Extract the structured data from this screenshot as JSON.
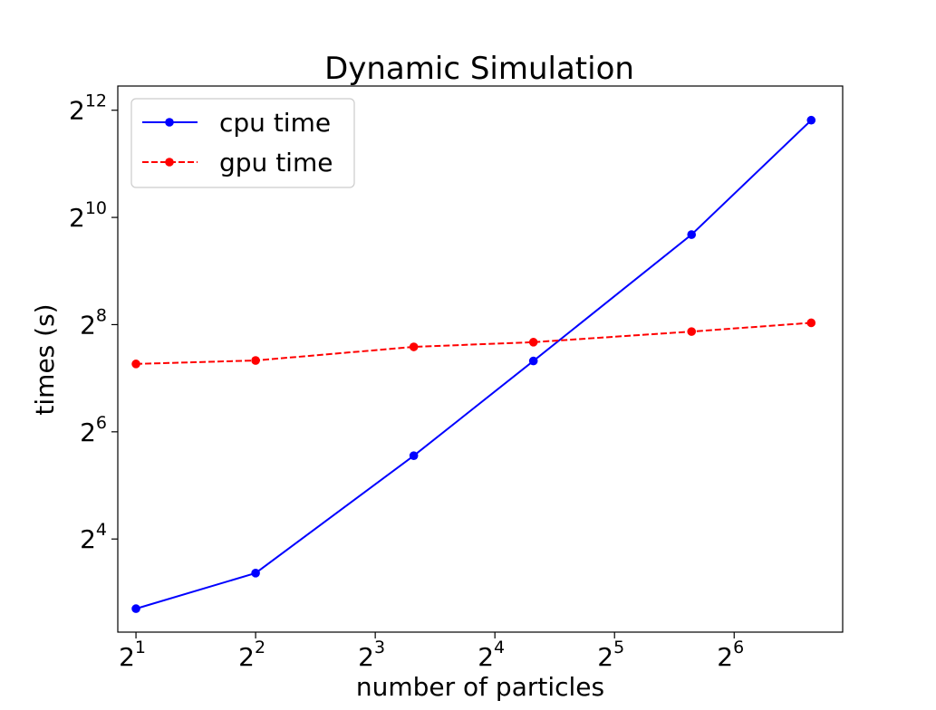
{
  "chart_data": {
    "type": "line",
    "title": "Dynamic Simulation",
    "xlabel": "number of particles",
    "ylabel": "times (s)",
    "xscale": "log2",
    "yscale": "log2",
    "xlim": [
      1.8,
      120
    ],
    "ylim": [
      4.8,
      5600
    ],
    "x_ticks": [
      {
        "base": "2",
        "exp": "1",
        "value": 2
      },
      {
        "base": "2",
        "exp": "2",
        "value": 4
      },
      {
        "base": "2",
        "exp": "3",
        "value": 8
      },
      {
        "base": "2",
        "exp": "4",
        "value": 16
      },
      {
        "base": "2",
        "exp": "5",
        "value": 32
      },
      {
        "base": "2",
        "exp": "6",
        "value": 64
      }
    ],
    "y_ticks": [
      {
        "base": "2",
        "exp": "4",
        "value": 16
      },
      {
        "base": "2",
        "exp": "6",
        "value": 64
      },
      {
        "base": "2",
        "exp": "8",
        "value": 256
      },
      {
        "base": "2",
        "exp": "10",
        "value": 1024
      },
      {
        "base": "2",
        "exp": "12",
        "value": 4096
      }
    ],
    "x": [
      2,
      4,
      10,
      20,
      50,
      100
    ],
    "series": [
      {
        "name": "cpu time",
        "values": [
          6.5,
          10.3,
          47,
          160,
          820,
          3600
        ],
        "color": "#0000ff",
        "linestyle": "solid",
        "marker": "circle"
      },
      {
        "name": "gpu time",
        "values": [
          154,
          161,
          192,
          204,
          234,
          262
        ],
        "color": "#ff0000",
        "linestyle": "dashed",
        "marker": "circle"
      }
    ],
    "legend": "top-left",
    "grid": false
  }
}
